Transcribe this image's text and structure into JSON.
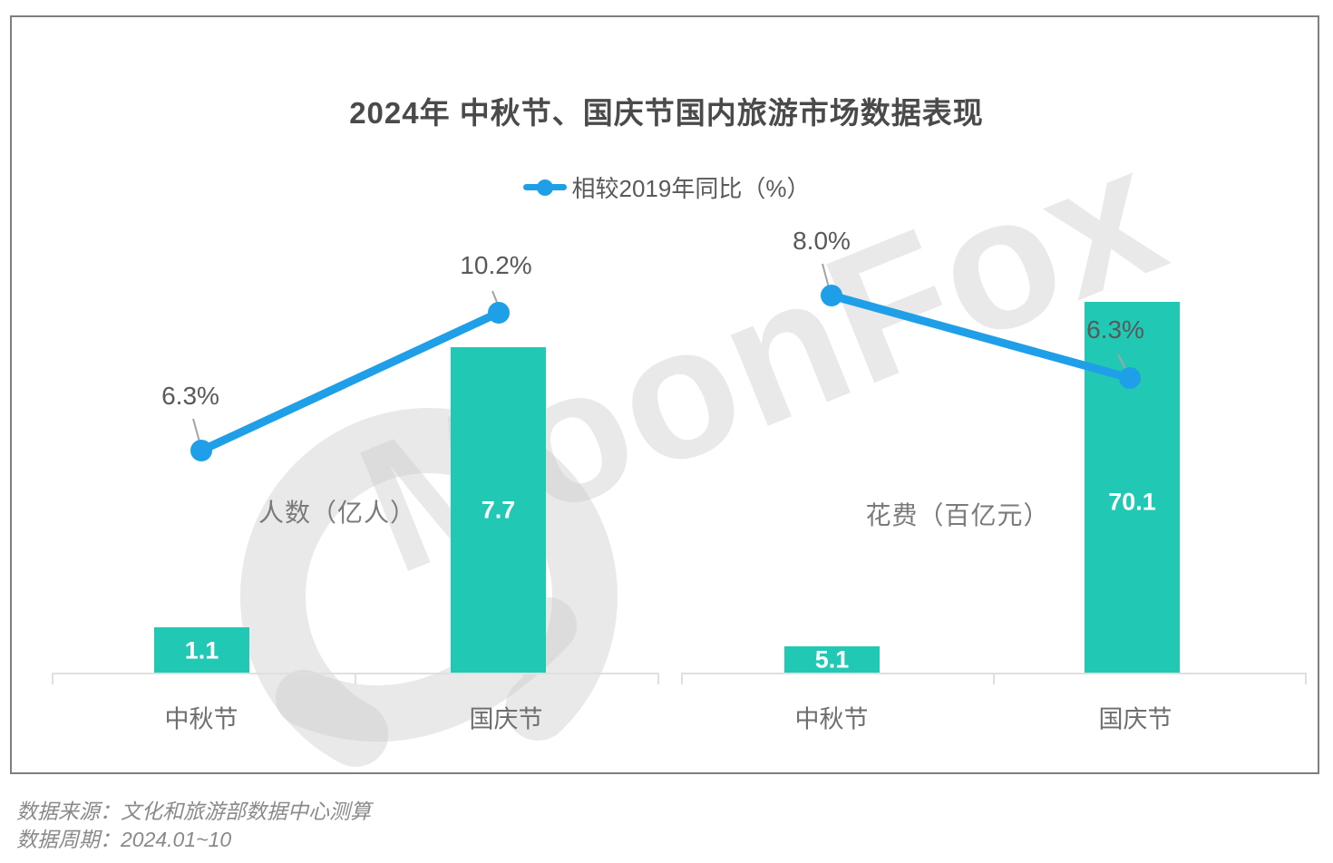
{
  "title": "2024年 中秋节、国庆节国内旅游市场数据表现",
  "legend": {
    "label": "相较2019年同比（%）"
  },
  "watermark": {
    "text": "MoonFox"
  },
  "footer": {
    "source": "数据来源：文化和旅游部数据中心测算",
    "period": "数据周期：2024.01~10"
  },
  "colors": {
    "bar_teal": "#21c9b4",
    "line_blue": "#1e9fe8",
    "title_gray": "#4a4a4a",
    "axis_gray": "#dfdfdf",
    "watermark_gray": "#e9e9e9",
    "frame_gray": "#7f7f7f"
  },
  "chart_data": [
    {
      "type": "bar",
      "group_label": "人数（亿人）",
      "categories": [
        "中秋节",
        "国庆节"
      ],
      "bar_series": {
        "name": "人数（亿人）",
        "values": [
          1.1,
          7.7
        ],
        "labels": [
          "1.1",
          "7.7"
        ]
      },
      "line_series": {
        "name": "相较2019年同比（%）",
        "values": [
          6.3,
          10.2
        ],
        "labels": [
          "6.3%",
          "10.2%"
        ]
      },
      "legend_position": "top-center",
      "grid": false,
      "y_axis_visible": false
    },
    {
      "type": "bar",
      "group_label": "花费（百亿元）",
      "categories": [
        "中秋节",
        "国庆节"
      ],
      "bar_series": {
        "name": "花费（百亿元）",
        "values": [
          5.1,
          70.1
        ],
        "labels": [
          "5.1",
          "70.1"
        ]
      },
      "line_series": {
        "name": "相较2019年同比（%）",
        "values": [
          8.0,
          6.3
        ],
        "labels": [
          "8.0%",
          "6.3%"
        ]
      },
      "legend_position": "top-center",
      "grid": false,
      "y_axis_visible": false
    }
  ]
}
